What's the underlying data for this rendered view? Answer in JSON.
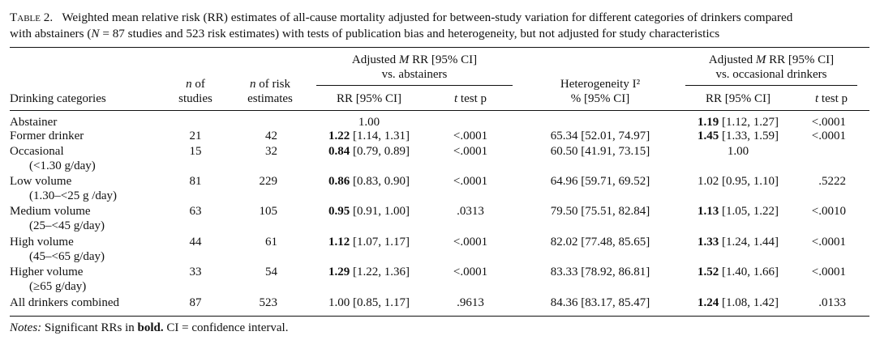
{
  "caption": {
    "label": "Table 2.",
    "text_line1": "Weighted mean relative risk (RR) estimates of all-cause mortality adjusted for between-study variation for different categories of drinkers compared",
    "text_line2_pre": "with abstainers (",
    "text_line2_N": "N",
    "text_line2_post": " = 87 studies and 523 risk estimates) with tests of publication bias and heterogeneity, but not adjusted for study characteristics"
  },
  "headers": {
    "group_abstainers_line1_pre": "Adjusted ",
    "group_abstainers_M": "M",
    "group_abstainers_line1_post": " RR [95% CI]",
    "group_abstainers_line2": "vs. abstainers",
    "group_occasional_line1_pre": "Adjusted ",
    "group_occasional_M": "M",
    "group_occasional_line1_post": " RR [95% CI]",
    "group_occasional_line2": "vs. occasional drinkers",
    "drinking_categories": "Drinking categories",
    "n_studies_n": "n",
    "n_studies_of": " of",
    "n_studies_line2": "studies",
    "n_risk_n": "n",
    "n_risk_of": " of risk",
    "n_risk_line2": "estimates",
    "rr_ci_1": "RR [95% CI]",
    "ttest_1_pre": "t",
    "ttest_1_post": " test p",
    "heterogeneity_line1": "Heterogeneity I²",
    "heterogeneity_line2": "% [95% CI]",
    "rr_ci_2": "RR [95% CI]",
    "ttest_2_pre": "t",
    "ttest_2_post": " test p"
  },
  "rows": [
    {
      "cat": "Abstainer",
      "sub": "",
      "n_studies": "",
      "n_risk": "",
      "rr1_bold": "",
      "rr1_rest": "1.00",
      "p1": "",
      "het": "",
      "rr2_bold": "1.19",
      "rr2_rest": " [1.12, 1.27]",
      "p2": "<.0001"
    },
    {
      "cat": "Former drinker",
      "sub": "",
      "n_studies": "21",
      "n_risk": "42",
      "rr1_bold": "1.22",
      "rr1_rest": " [1.14, 1.31]",
      "p1": "<.0001",
      "het": "65.34 [52.01, 74.97]",
      "rr2_bold": "1.45",
      "rr2_rest": " [1.33, 1.59]",
      "p2": "<.0001"
    },
    {
      "cat": "Occasional",
      "sub": "(<1.30 g/day)",
      "n_studies": "15",
      "n_risk": "32",
      "rr1_bold": "0.84",
      "rr1_rest": " [0.79, 0.89]",
      "p1": "<.0001",
      "het": "60.50 [41.91, 73.15]",
      "rr2_bold": "",
      "rr2_rest": "1.00",
      "p2": ""
    },
    {
      "cat": "Low volume",
      "sub": "(1.30–<25 g /day)",
      "n_studies": "81",
      "n_risk": "229",
      "rr1_bold": "0.86",
      "rr1_rest": " [0.83, 0.90]",
      "p1": "<.0001",
      "het": "64.96 [59.71, 69.52]",
      "rr2_bold": "",
      "rr2_rest": "1.02 [0.95, 1.10]",
      "p2": ".5222"
    },
    {
      "cat": "Medium volume",
      "sub": "(25–<45 g/day)",
      "n_studies": "63",
      "n_risk": "105",
      "rr1_bold": "0.95",
      "rr1_rest": " [0.91, 1.00]",
      "p1": ".0313",
      "het": "79.50 [75.51, 82.84]",
      "rr2_bold": "1.13",
      "rr2_rest": " [1.05, 1.22]",
      "p2": "<.0010"
    },
    {
      "cat": "High volume",
      "sub": "(45–<65 g/day)",
      "n_studies": "44",
      "n_risk": "61",
      "rr1_bold": "1.12",
      "rr1_rest": " [1.07, 1.17]",
      "p1": "<.0001",
      "het": "82.02 [77.48, 85.65]",
      "rr2_bold": "1.33",
      "rr2_rest": " [1.24, 1.44]",
      "p2": "<.0001"
    },
    {
      "cat": "Higher volume",
      "sub": "(≥65 g/day)",
      "n_studies": "33",
      "n_risk": "54",
      "rr1_bold": "1.29",
      "rr1_rest": " [1.22, 1.36]",
      "p1": "<.0001",
      "het": "83.33 [78.92, 86.81]",
      "rr2_bold": "1.52",
      "rr2_rest": " [1.40, 1.66]",
      "p2": "<.0001"
    },
    {
      "cat": "All drinkers combined",
      "sub": "",
      "n_studies": "87",
      "n_risk": "523",
      "rr1_bold": "",
      "rr1_rest": "1.00 [0.85, 1.17]",
      "p1": ".9613",
      "het": "84.36 [83.17, 85.47]",
      "rr2_bold": "1.24",
      "rr2_rest": " [1.08, 1.42]",
      "p2": ".0133"
    }
  ],
  "notes": {
    "label": "Notes:",
    "text_pre": " Significant RRs in ",
    "text_bold": "bold.",
    "text_post": " CI = confidence interval."
  }
}
